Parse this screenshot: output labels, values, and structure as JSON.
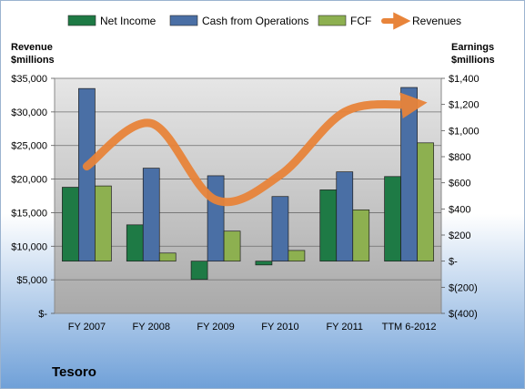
{
  "company": "Tesoro",
  "colors": {
    "net_income": "#1E7A45",
    "cash_ops": "#4A6FA5",
    "fcf": "#8DB050",
    "revenues": "#E8843A",
    "bg_top": "#FFFFFF",
    "bg_bottom": "#6FA0D8",
    "plot_top": "#E6E6E6",
    "plot_bottom": "#A9A9A9"
  },
  "chart_data": {
    "type": "bar",
    "categories": [
      "FY 2007",
      "FY 2008",
      "FY 2009",
      "FY 2010",
      "FY 2011",
      "TTM 6-2012"
    ],
    "series": [
      {
        "name": "Net Income",
        "axis": "right",
        "values": [
          566,
          278,
          -140,
          -29,
          546,
          648
        ]
      },
      {
        "name": "Cash from Operations",
        "axis": "right",
        "values": [
          1322,
          712,
          654,
          495,
          684,
          1330
        ]
      },
      {
        "name": "FCF",
        "axis": "right",
        "values": [
          576,
          62,
          230,
          82,
          393,
          906
        ]
      },
      {
        "name": "Revenues",
        "type": "line",
        "axis": "left",
        "values": [
          21900,
          28300,
          16900,
          20600,
          30000,
          31100
        ]
      }
    ],
    "y_left": {
      "label_line1": "Revenue",
      "label_line2": "$millions",
      "range": [
        0,
        35000
      ],
      "ticks": [
        0,
        5000,
        10000,
        15000,
        20000,
        25000,
        30000,
        35000
      ],
      "tick_labels": [
        "$-",
        "$5,000",
        "$10,000",
        "$15,000",
        "$20,000",
        "$25,000",
        "$30,000",
        "$35,000"
      ]
    },
    "y_right": {
      "label_line1": "Earnings",
      "label_line2": "$millions",
      "range": [
        -400,
        1400
      ],
      "ticks": [
        -400,
        -200,
        0,
        200,
        400,
        600,
        800,
        1000,
        1200,
        1400
      ],
      "tick_labels": [
        "$(400)",
        "$(200)",
        "$-",
        "$200",
        "$400",
        "$600",
        "$800",
        "$1,000",
        "$1,200",
        "$1,400"
      ]
    },
    "legend": {
      "position": "top",
      "items": [
        "Net Income",
        "Cash from Operations",
        "FCF",
        "Revenues"
      ]
    },
    "grid": true
  }
}
